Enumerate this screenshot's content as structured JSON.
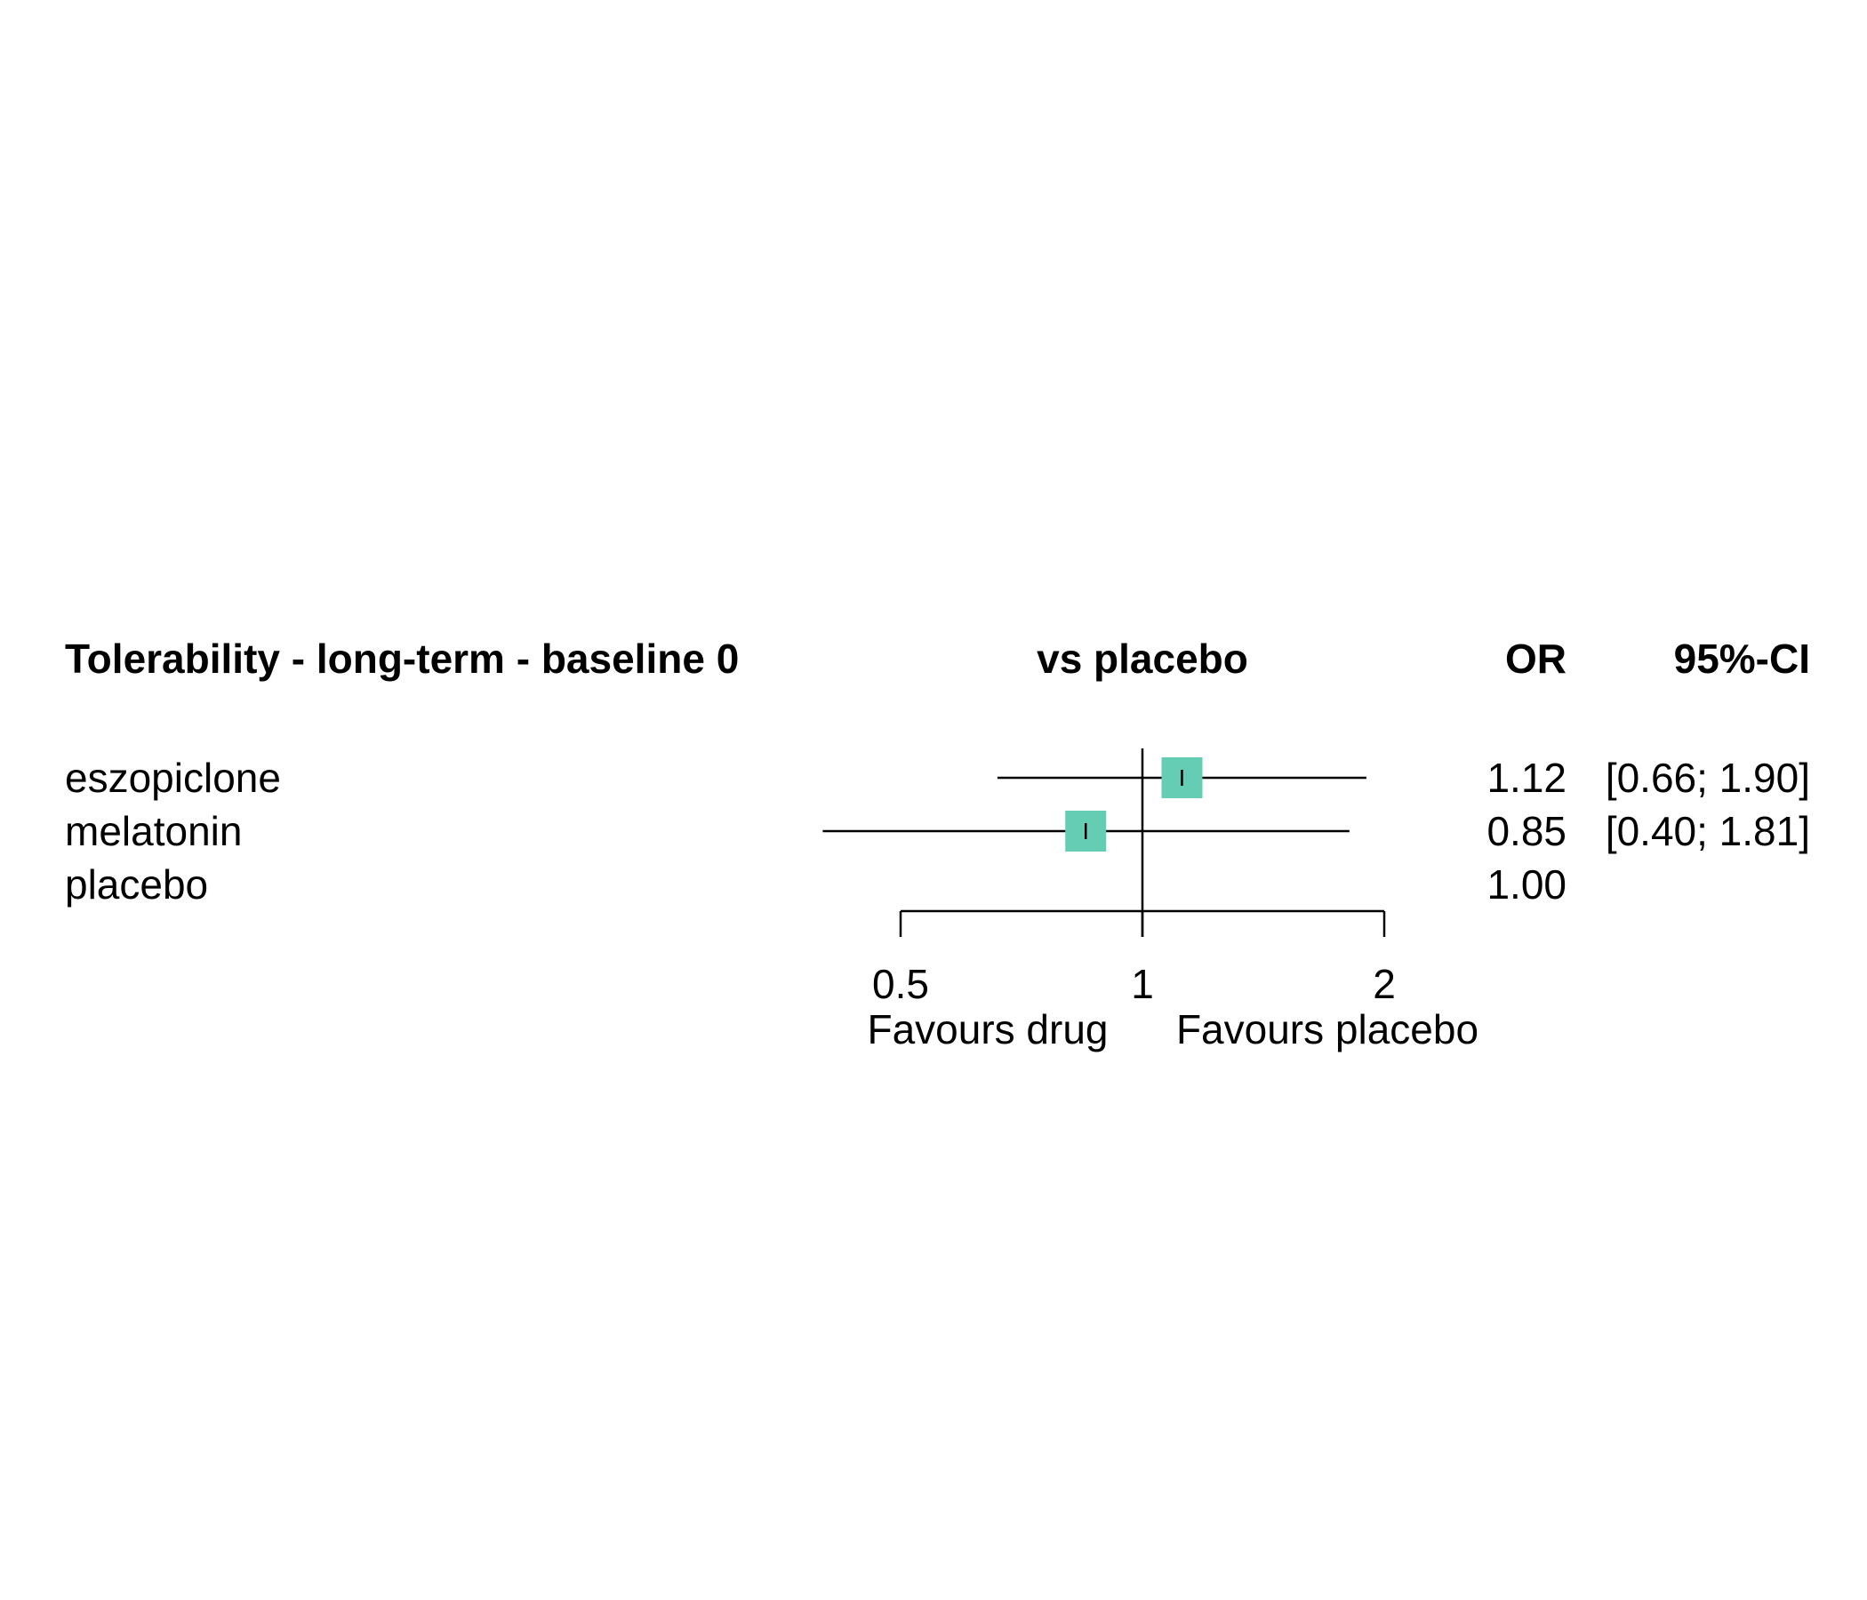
{
  "chart_data": {
    "type": "forest",
    "header": {
      "title": "Tolerability - long-term - baseline 0",
      "comparison": "vs placebo",
      "effect_col": "OR",
      "ci_col": "95%-CI"
    },
    "rows": [
      {
        "label": "eszopiclone",
        "or": 1.12,
        "lower": 0.66,
        "upper": 1.9,
        "or_text": "1.12",
        "ci_text": "[0.66; 1.90]"
      },
      {
        "label": "melatonin",
        "or": 0.85,
        "lower": 0.4,
        "upper": 1.81,
        "or_text": "0.85",
        "ci_text": "[0.40; 1.81]"
      },
      {
        "label": "placebo",
        "or": 1.0,
        "lower": null,
        "upper": null,
        "or_text": "1.00",
        "ci_text": ""
      }
    ],
    "x_axis": {
      "scale": "log",
      "ticks": [
        0.5,
        1,
        2
      ],
      "tick_labels": [
        "0.5",
        "1",
        "2"
      ],
      "reference": 1,
      "left_label": "Favours drug",
      "right_label": "Favours placebo"
    },
    "colors": {
      "box": "#66CDB5",
      "line": "#000000"
    }
  }
}
